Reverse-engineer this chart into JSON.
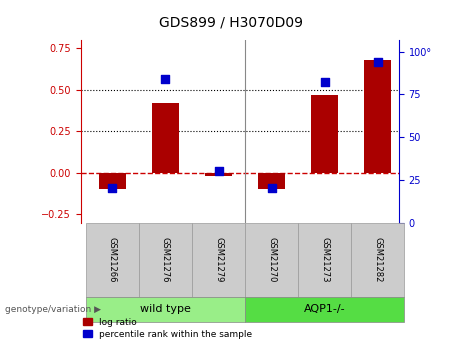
{
  "title": "GDS899 / H3070D09",
  "samples": [
    "GSM21266",
    "GSM21276",
    "GSM21279",
    "GSM21270",
    "GSM21273",
    "GSM21282"
  ],
  "log_ratio": [
    -0.1,
    0.42,
    -0.02,
    -0.1,
    0.47,
    0.68
  ],
  "percentile_rank": [
    20,
    84,
    30,
    20,
    82,
    94
  ],
  "bar_color": "#AA0000",
  "dot_color": "#0000CC",
  "ylim_left": [
    -0.3,
    0.8
  ],
  "ylim_right": [
    0,
    107
  ],
  "y_ticks_left": [
    -0.25,
    0.0,
    0.25,
    0.5,
    0.75
  ],
  "y_ticks_right": [
    0,
    25,
    50,
    75,
    100
  ],
  "hline_0_color": "#CC0000",
  "hline_dotted_color": "#000000",
  "hline_dotted_values": [
    0.25,
    0.5
  ],
  "wild_type_color": "#99EE88",
  "aqp1_color": "#55DD44",
  "genotype_label": "genotype/variation",
  "wild_type_label": "wild type",
  "aqp1_label": "AQP1-/-",
  "legend_log_ratio": "log ratio",
  "legend_percentile": "percentile rank within the sample",
  "bar_width": 0.5,
  "right_axis_label_color": "#0000CC",
  "left_axis_label_color": "#CC0000",
  "sample_box_color": "#CCCCCC",
  "sample_box_edge_color": "#999999",
  "xlim": [
    -0.6,
    5.4
  ]
}
